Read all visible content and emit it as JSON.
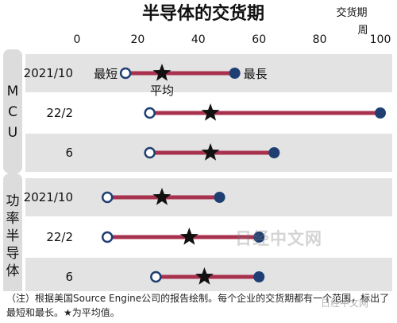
{
  "chart_data": {
    "type": "range",
    "title": "半导体的交货期",
    "unit_label": [
      "交货期",
      "周"
    ],
    "xlim": [
      0,
      100
    ],
    "x_ticks": [
      0,
      20,
      40,
      60,
      80,
      100
    ],
    "groups": [
      {
        "label": "M C U",
        "rows": [
          {
            "label": "2021/10",
            "min": 16,
            "max": 52,
            "avg": 28
          },
          {
            "label": "22/2",
            "min": 24,
            "max": 100,
            "avg": 44
          },
          {
            "label": "6",
            "min": 24,
            "max": 65,
            "avg": 44
          }
        ]
      },
      {
        "label": "功率半导体",
        "rows": [
          {
            "label": "2021/10",
            "min": 10,
            "max": 47,
            "avg": 28
          },
          {
            "label": "22/2",
            "min": 10,
            "max": 60,
            "avg": 37
          },
          {
            "label": "6",
            "min": 26,
            "max": 60,
            "avg": 42
          }
        ]
      }
    ],
    "annotations": {
      "min_label": "最短",
      "max_label": "最長",
      "avg_label": "平均"
    },
    "colors": {
      "bar": "#a8324e",
      "max_dot": "#1f3f73",
      "min_dot_stroke": "#1f3f73",
      "band": "#e3e3e3",
      "group_box": "#dcdcdc"
    }
  },
  "note": "（注）根据美国Source Engine公司的报告绘制。每个企业的交货期都有一个范围，标出了最短和最长。★为平均值。",
  "watermark": "日经中文网",
  "corner_mark": "日经中文网"
}
